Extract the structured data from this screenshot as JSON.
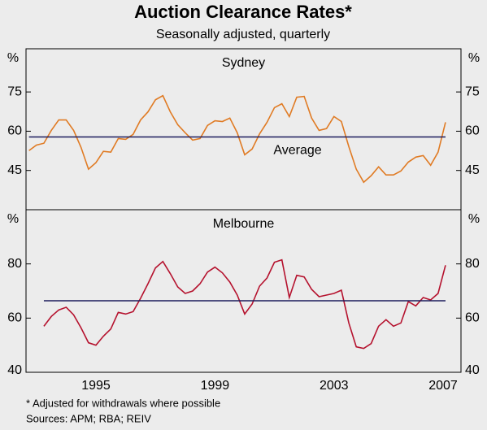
{
  "title": "Auction Clearance Rates*",
  "subtitle": "Seasonally adjusted, quarterly",
  "footnote": "*   Adjusted for withdrawals where possible",
  "sources": "Sources: APM; RBA; REIV",
  "chart_data": [
    {
      "type": "line",
      "title": "Sydney",
      "y_unit": "%",
      "x": [
        1993.25,
        1993.5,
        1993.75,
        1994,
        1994.25,
        1994.5,
        1994.75,
        1995,
        1995.25,
        1995.5,
        1995.75,
        1996,
        1996.25,
        1996.5,
        1996.75,
        1997,
        1997.25,
        1997.5,
        1997.75,
        1998,
        1998.25,
        1998.5,
        1998.75,
        1999,
        1999.25,
        1999.5,
        1999.75,
        2000,
        2000.25,
        2000.5,
        2000.75,
        2001,
        2001.25,
        2001.5,
        2001.75,
        2002,
        2002.25,
        2002.5,
        2002.75,
        2003,
        2003.25,
        2003.5,
        2003.75,
        2004,
        2004.25,
        2004.5,
        2004.75,
        2005,
        2005.25,
        2005.5,
        2005.75,
        2006,
        2006.25,
        2006.5,
        2006.75,
        2007,
        2007.25
      ],
      "xlim": [
        1993.15,
        2007.77
      ],
      "xticks": [
        {
          "value": 1995.5,
          "label": "1995"
        },
        {
          "value": 1999.5,
          "label": "1999"
        },
        {
          "value": 2003.5,
          "label": "2003"
        },
        {
          "value": 2007.5,
          "label": "2007"
        }
      ],
      "ylim": [
        30,
        91.5
      ],
      "yticks": [
        45,
        60,
        75
      ],
      "series": [
        {
          "color": "#e07b24",
          "values": [
            52.6,
            54.7,
            55.4,
            60.3,
            64.3,
            64.3,
            60.3,
            53.8,
            45.5,
            48,
            52.3,
            52,
            57.2,
            56.9,
            58.8,
            64.3,
            67.4,
            72,
            73.6,
            67.4,
            62.5,
            59.4,
            56.6,
            57.2,
            62.2,
            64,
            63.7,
            65,
            59.4,
            51,
            53.2,
            59,
            63.4,
            69,
            70.5,
            65.6,
            73,
            73.3,
            65,
            60.3,
            61,
            65.6,
            63.7,
            54.1,
            45.5,
            40.5,
            43,
            46.4,
            43.3,
            43.3,
            44.8,
            48.2,
            50.1,
            50.7,
            47,
            52,
            63.4
          ]
        }
      ],
      "average": {
        "label": "Average",
        "value": 57.8,
        "color": "#1c1c5c"
      }
    },
    {
      "type": "line",
      "title": "Melbourne",
      "y_unit": "%",
      "x": [
        1993.25,
        1993.5,
        1993.75,
        1994,
        1994.25,
        1994.5,
        1994.75,
        1995,
        1995.25,
        1995.5,
        1995.75,
        1996,
        1996.25,
        1996.5,
        1996.75,
        1997,
        1997.25,
        1997.5,
        1997.75,
        1998,
        1998.25,
        1998.5,
        1998.75,
        1999,
        1999.25,
        1999.5,
        1999.75,
        2000,
        2000.25,
        2000.5,
        2000.75,
        2001,
        2001.25,
        2001.5,
        2001.75,
        2002,
        2002.25,
        2002.5,
        2002.75,
        2003,
        2003.25,
        2003.5,
        2003.75,
        2004,
        2004.25,
        2004.5,
        2004.75,
        2005,
        2005.25,
        2005.5,
        2005.75,
        2006,
        2006.25,
        2006.5,
        2006.75,
        2007,
        2007.25
      ],
      "xlim": [
        1993.15,
        2007.77
      ],
      "xticks": [
        {
          "value": 1995.5,
          "label": "1995"
        },
        {
          "value": 1999.5,
          "label": "1999"
        },
        {
          "value": 2003.5,
          "label": "2003"
        },
        {
          "value": 2007.5,
          "label": "2007"
        }
      ],
      "ylim": [
        40,
        100
      ],
      "yticks": [
        40,
        60,
        80
      ],
      "series": [
        {
          "color": "#b5122e",
          "values": [
            null,
            null,
            57,
            60.6,
            63,
            64,
            61.2,
            56.4,
            50.9,
            50,
            53.3,
            56,
            62.1,
            61.5,
            62.4,
            67.3,
            72.7,
            78.5,
            80.9,
            76.4,
            71.5,
            69.1,
            70,
            72.7,
            77,
            78.8,
            76.7,
            73.3,
            68.5,
            61.5,
            65.2,
            71.8,
            74.8,
            80.6,
            81.5,
            67.6,
            75.8,
            75.2,
            70.6,
            67.9,
            68.5,
            69.1,
            70.3,
            58.2,
            49.4,
            48.8,
            50.6,
            57,
            59.4,
            57,
            58.2,
            66.1,
            64.5,
            67.6,
            66.7,
            69.1,
            79.5
          ]
        }
      ],
      "average": {
        "value": 66.4,
        "color": "#1c1c5c"
      }
    }
  ]
}
